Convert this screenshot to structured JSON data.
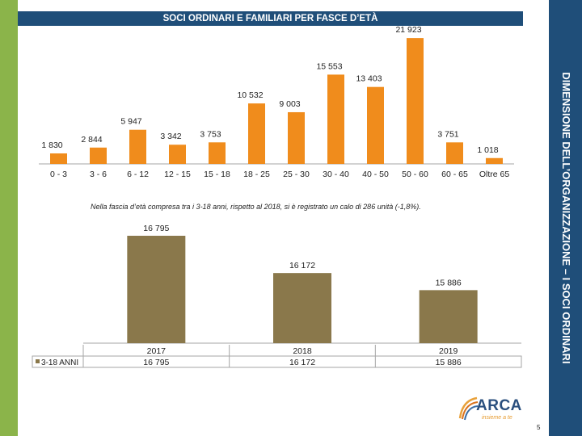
{
  "header": {
    "title": "SOCI ORDINARI E FAMILIARI PER FASCE D’ETÀ"
  },
  "side_title": "DIMENSIONE DELL’ORGANIZZAZIONE – I SOCI ORDINARI",
  "note": "Nella fascia d’età compresa tra i 3-18 anni, rispetto al 2018, si è registrato un calo di 286 unità (-1,8%).",
  "logo": {
    "name": "ARCA",
    "tagline": "insieme a te"
  },
  "page_number": "5",
  "colors": {
    "stripe_green": "#8bb44a",
    "header_blue": "#1f4e79",
    "bar_orange": "#f08c1c",
    "bar_olive": "#8a784b",
    "axis_gray": "#a6a6a6"
  },
  "chart_data": [
    {
      "type": "bar",
      "title": "",
      "categories": [
        "0 - 3",
        "3 - 6",
        "6 - 12",
        "12 - 15",
        "15 - 18",
        "18 - 25",
        "25 - 30",
        "30 - 40",
        "40 - 50",
        "50 - 60",
        "60 - 65",
        "Oltre 65"
      ],
      "values": [
        1830,
        2844,
        5947,
        3342,
        3753,
        10532,
        9003,
        15553,
        13403,
        21923,
        3751,
        1018
      ],
      "value_labels": [
        "1 830",
        "2 844",
        "5 947",
        "3 342",
        "3 753",
        "10 532",
        "9 003",
        "15 553",
        "13 403",
        "21 923",
        "3 751",
        "1 018"
      ],
      "ylim": [
        0,
        22500
      ],
      "grid": false,
      "legend": "none"
    },
    {
      "type": "bar",
      "title": "",
      "categories": [
        "2017",
        "2018",
        "2019"
      ],
      "series": [
        {
          "name": "3-18 ANNI",
          "values": [
            16795,
            16172,
            15886
          ],
          "value_labels": [
            "16 795",
            "16 172",
            "15 886"
          ]
        }
      ],
      "ylim": [
        15000,
        17000
      ],
      "grid": false,
      "legend": "bottom-left (data table)"
    }
  ]
}
